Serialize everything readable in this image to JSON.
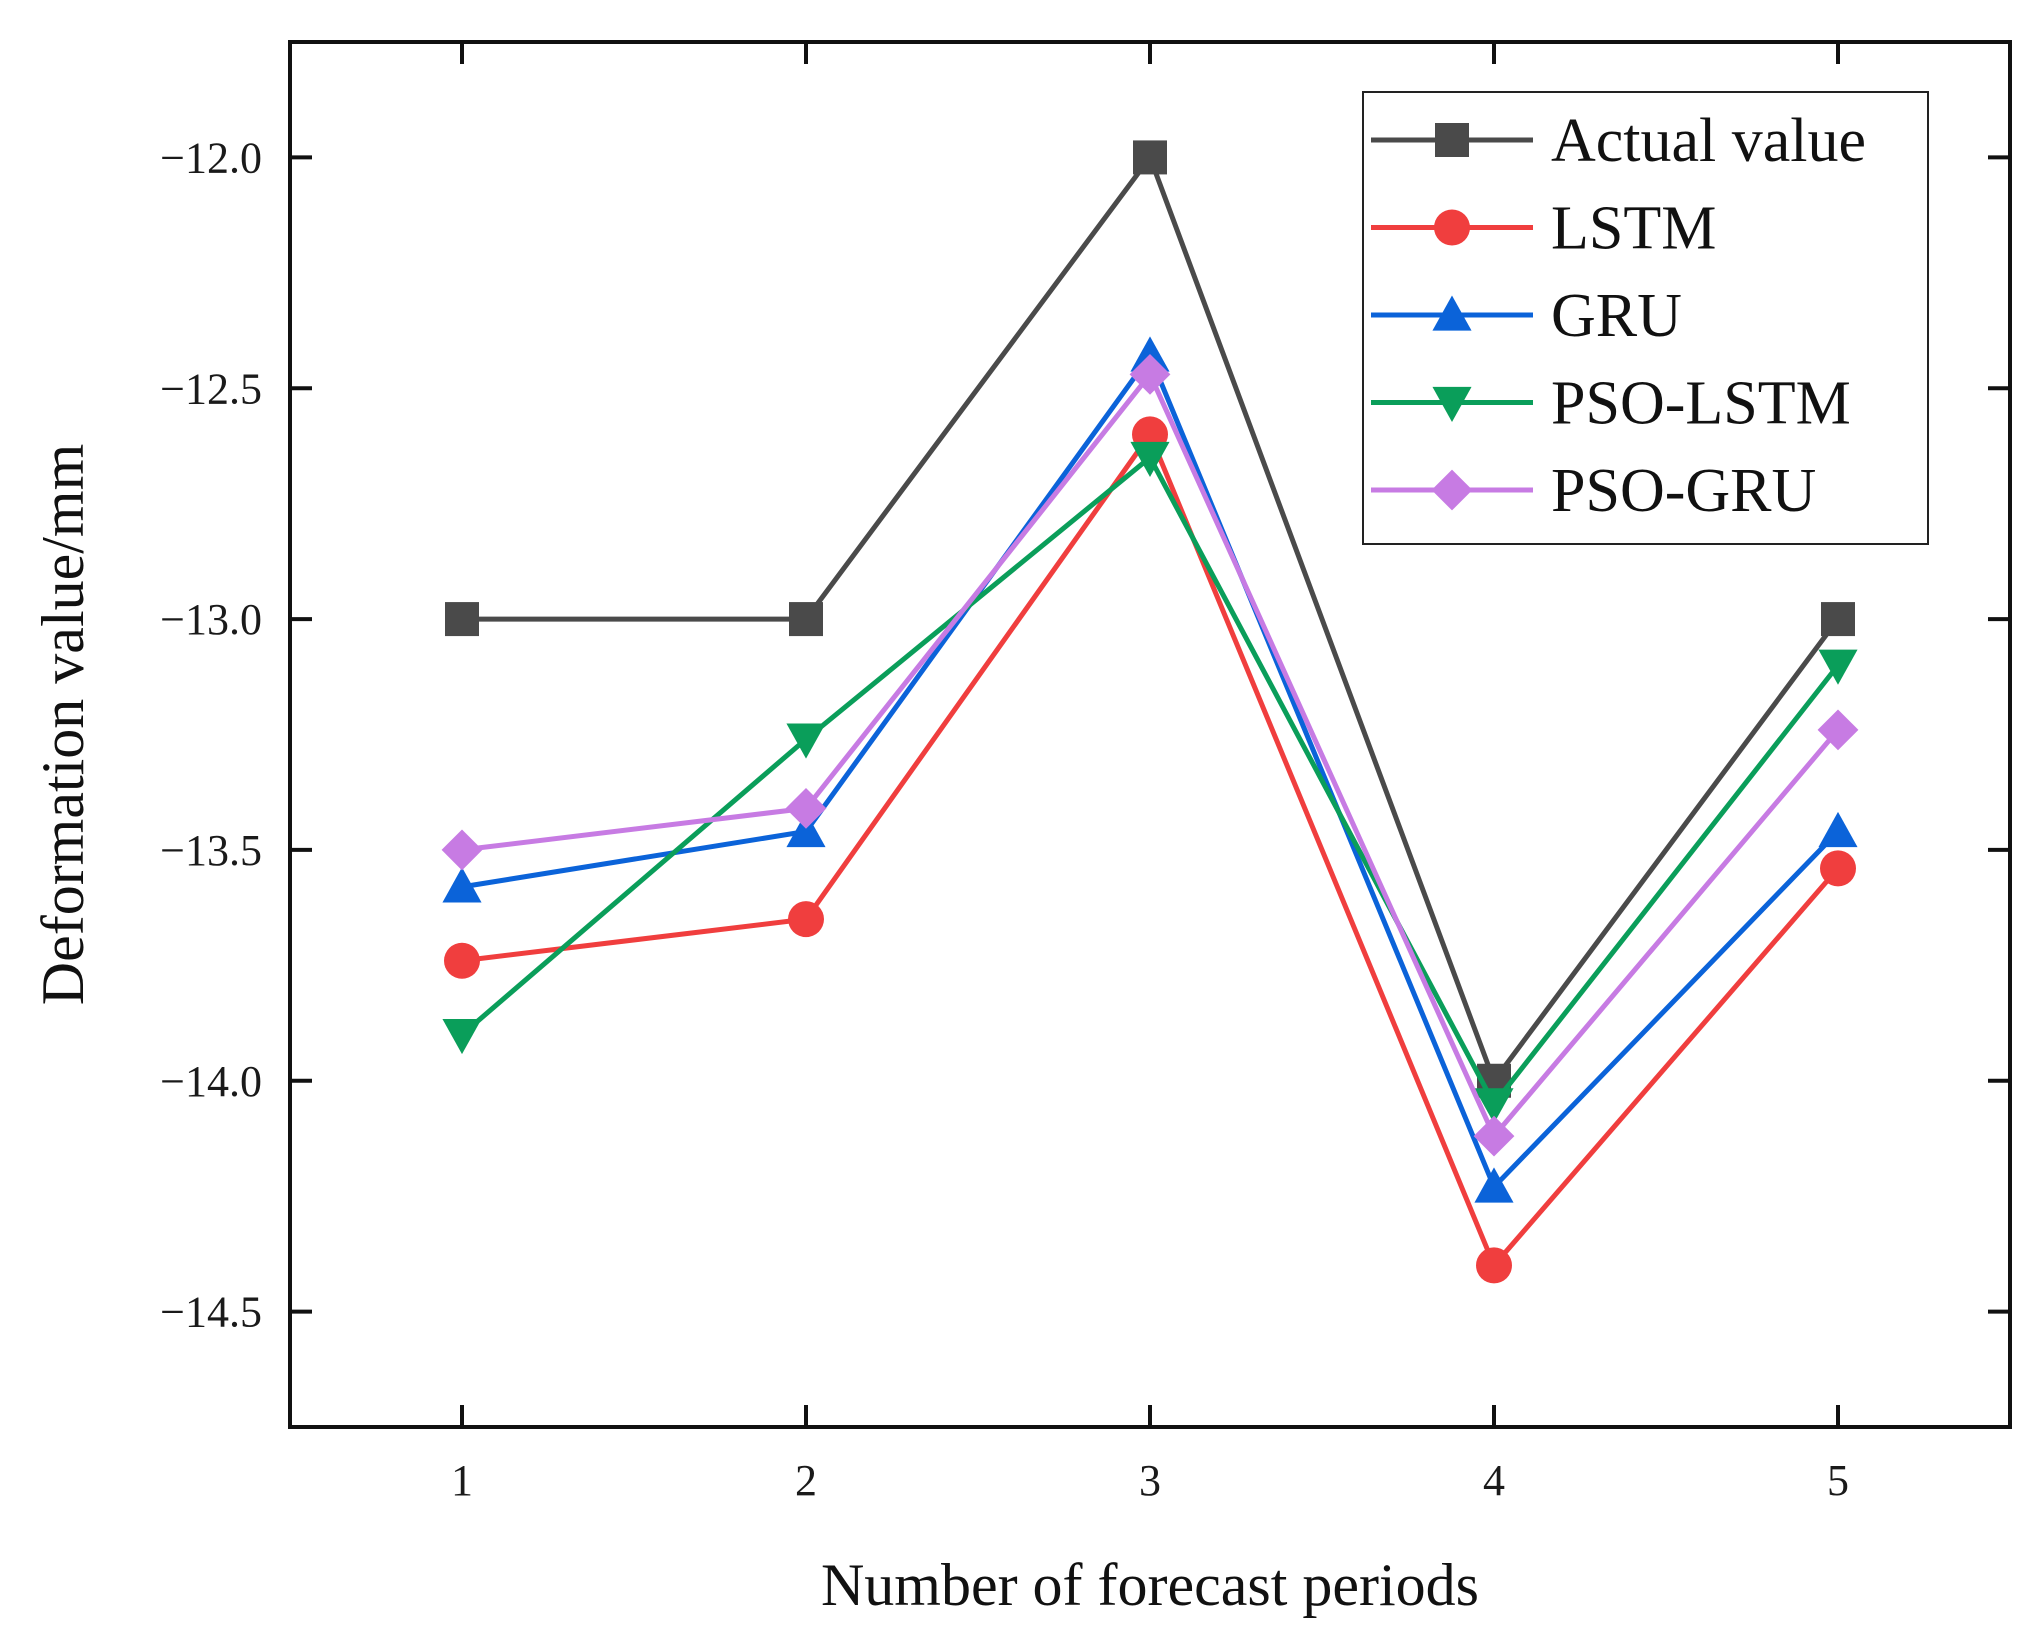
{
  "chart_data": {
    "type": "line",
    "title": "",
    "xlabel": "Number of forecast periods",
    "ylabel": "Deformation value/mm",
    "x": [
      1,
      2,
      3,
      4,
      5
    ],
    "xtick_labels": [
      "1",
      "2",
      "3",
      "4",
      "5"
    ],
    "xlim": [
      0.5,
      5.5
    ],
    "ylim": [
      -14.75,
      -11.75
    ],
    "yticks": [
      -12.0,
      -12.5,
      -13.0,
      -13.5,
      -14.0,
      -14.5
    ],
    "ytick_labels": [
      "−12.0",
      "−12.5",
      "−13.0",
      "−13.5",
      "−14.0",
      "−14.5"
    ],
    "grid": false,
    "legend_position": "top-right",
    "series": [
      {
        "name": "Actual value",
        "color": "#4a4a4a",
        "marker": "square",
        "values": [
          -13.0,
          -13.0,
          -12.0,
          -14.0,
          -13.0
        ]
      },
      {
        "name": "LSTM",
        "color": "#f03e3e",
        "marker": "circle",
        "values": [
          -13.74,
          -13.65,
          -12.6,
          -14.4,
          -13.54
        ]
      },
      {
        "name": "GRU",
        "color": "#0b63d9",
        "marker": "triangle-up",
        "values": [
          -13.58,
          -13.46,
          -12.43,
          -14.23,
          -13.46
        ]
      },
      {
        "name": "PSO-LSTM",
        "color": "#0a9e5a",
        "marker": "triangle-down",
        "values": [
          -13.9,
          -13.26,
          -12.65,
          -14.05,
          -13.1
        ]
      },
      {
        "name": "PSO-GRU",
        "color": "#c77be3",
        "marker": "diamond",
        "values": [
          -13.5,
          -13.41,
          -12.47,
          -14.12,
          -13.24
        ]
      }
    ]
  }
}
